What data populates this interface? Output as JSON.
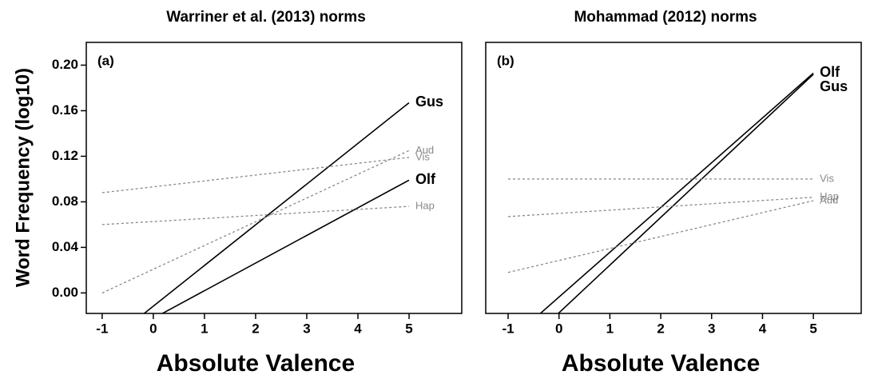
{
  "chart_data": [
    {
      "type": "line",
      "title": "Warriner et al. (2013) norms",
      "panel_label": "(a)",
      "xlabel": "Absolute Valence",
      "ylabel": "Word Frequency (log10)",
      "xlim": [
        -1.31,
        6.03
      ],
      "ylim": [
        -0.018,
        0.22
      ],
      "xticks": [
        -1,
        0,
        1,
        2,
        3,
        4,
        5
      ],
      "yticks": [
        {
          "value": 0,
          "label": "0.00"
        },
        {
          "value": 0.04,
          "label": "0.04"
        },
        {
          "value": 0.08,
          "label": "0.08"
        },
        {
          "value": 0.12,
          "label": "0.12"
        },
        {
          "value": 0.16,
          "label": "0.16"
        },
        {
          "value": 0.2,
          "label": "0.20"
        }
      ],
      "series": [
        {
          "name": "Gus",
          "color": "#000000",
          "dashed": false,
          "x": [
            -0.375,
            5
          ],
          "y": [
            -0.025,
            0.167
          ]
        },
        {
          "name": "Olf",
          "color": "#000000",
          "dashed": false,
          "x": [
            -0.11,
            5
          ],
          "y": [
            -0.025,
            0.099
          ]
        },
        {
          "name": "Aud",
          "color": "#888888",
          "dashed": true,
          "x": [
            -1,
            5
          ],
          "y": [
            0.0,
            0.125
          ]
        },
        {
          "name": "Vis",
          "color": "#888888",
          "dashed": true,
          "x": [
            -1,
            5
          ],
          "y": [
            0.088,
            0.119
          ]
        },
        {
          "name": "Hap",
          "color": "#888888",
          "dashed": true,
          "x": [
            -1,
            5
          ],
          "y": [
            0.06,
            0.076
          ]
        }
      ]
    },
    {
      "type": "line",
      "title": "Mohammad (2012) norms",
      "panel_label": "(b)",
      "xlabel": "Absolute Valence",
      "xlim": [
        -1.44,
        5.94
      ],
      "ylim": [
        -0.018,
        0.22
      ],
      "xticks": [
        -1,
        0,
        1,
        2,
        3,
        4,
        5
      ],
      "series": [
        {
          "name": "Olf",
          "color": "#000000",
          "dashed": false,
          "x": [
            -0.545,
            5
          ],
          "y": [
            -0.025,
            0.193
          ]
        },
        {
          "name": "Gus",
          "color": "#000000",
          "dashed": false,
          "x": [
            -0.18,
            5
          ],
          "y": [
            -0.025,
            0.192
          ]
        },
        {
          "name": "Vis",
          "color": "#888888",
          "dashed": true,
          "x": [
            -1,
            5
          ],
          "y": [
            0.1,
            0.1
          ]
        },
        {
          "name": "Hap",
          "color": "#888888",
          "dashed": true,
          "x": [
            -1,
            5
          ],
          "y": [
            0.067,
            0.084
          ]
        },
        {
          "name": "Aud",
          "color": "#888888",
          "dashed": true,
          "x": [
            -1,
            5
          ],
          "y": [
            0.018,
            0.081
          ]
        }
      ]
    }
  ]
}
